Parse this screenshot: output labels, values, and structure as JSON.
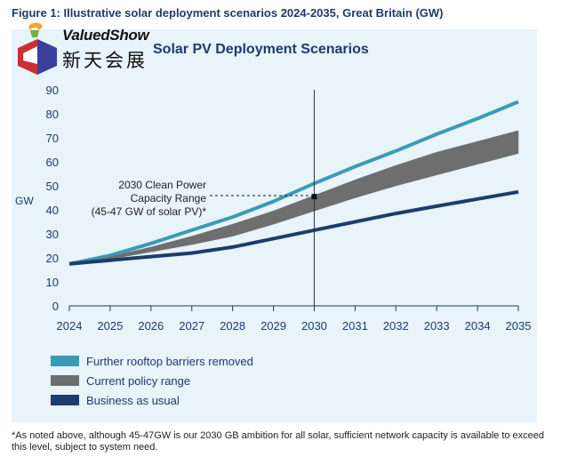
{
  "figure_title": "Figure 1: Illustrative solar deployment scenarios 2024-2035, Great Britain (GW)",
  "logo": {
    "brand": "ValuedShow",
    "chinese": "新天会展"
  },
  "colors": {
    "rooftop": "#3a9bb6",
    "policy": "#6e6e6e",
    "bau": "#1d3b6e",
    "panel": "#e8f3fa"
  },
  "chart_data": {
    "type": "line",
    "title": "Solar PV Deployment Scenarios",
    "xlabel": "",
    "ylabel": "GW",
    "ylim": [
      0,
      90
    ],
    "yticks": [
      "0",
      "10",
      "20",
      "30",
      "40",
      "50",
      "60",
      "70",
      "80",
      "90"
    ],
    "categories": [
      "2024",
      "2025",
      "2026",
      "2027",
      "2028",
      "2029",
      "2030",
      "2031",
      "2032",
      "2033",
      "2034",
      "2035"
    ],
    "series": [
      {
        "name": "Further rooftop barriers removed",
        "kind": "line",
        "values": [
          17.5,
          21,
          26,
          31.5,
          37,
          43.5,
          51,
          58,
          64.5,
          71.5,
          78,
          85
        ]
      },
      {
        "name": "Current policy range",
        "kind": "band",
        "upper": [
          17.5,
          20.5,
          24.5,
          29,
          34,
          39.5,
          46,
          52.5,
          58.5,
          64,
          68.5,
          73
        ],
        "lower": [
          17.5,
          19.5,
          22.5,
          25.5,
          29,
          34,
          39.5,
          45,
          50,
          54.5,
          59,
          63.5
        ]
      },
      {
        "name": "Business as usual",
        "kind": "line",
        "values": [
          17.5,
          19,
          20.5,
          22,
          24.5,
          28,
          31.5,
          35,
          38.5,
          41.5,
          44.5,
          47.5
        ]
      }
    ],
    "reference_line": {
      "x": "2030"
    },
    "annotation": {
      "lines": [
        "2030 Clean Power",
        "Capacity Range",
        "(45-47 GW of solar PV)*"
      ],
      "point": {
        "x": "2030",
        "y": 45.5
      }
    },
    "legend": [
      {
        "label": "Further rooftop barriers removed",
        "color": "#3a9bb6"
      },
      {
        "label": "Current policy range",
        "color": "#6e6e6e"
      },
      {
        "label": "Business as usual",
        "color": "#1d3b6e"
      }
    ]
  },
  "footnote": "*As noted above, although 45-47GW is our 2030 GB ambition for all solar, sufficient network capacity is available to exceed this level, subject to system need."
}
